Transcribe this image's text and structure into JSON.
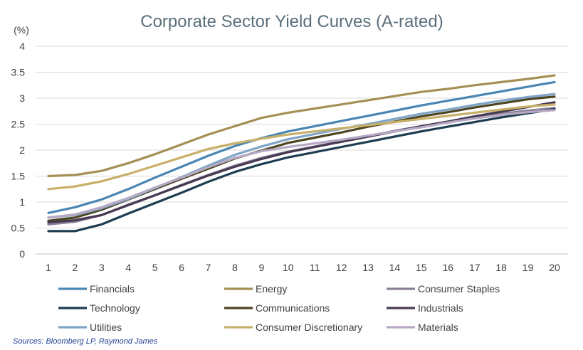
{
  "chart_data": {
    "type": "line",
    "title": "Corporate Sector Yield Curves (A-rated)",
    "ylabel": "(%)",
    "xlabel": "",
    "source": "Sources: Bloomberg LP, Raymond James",
    "x": [
      1,
      2,
      3,
      4,
      5,
      6,
      7,
      8,
      9,
      10,
      11,
      12,
      13,
      14,
      15,
      16,
      17,
      18,
      19,
      20
    ],
    "ylim": [
      0,
      4
    ],
    "yticks": [
      "0",
      "0.5",
      "1",
      "1.5",
      "2",
      "2.5",
      "3",
      "3.5",
      "4"
    ],
    "grid": "horizontal",
    "legend_placement": "bottom",
    "series": [
      {
        "name": "Financials",
        "color": "#4a86b4",
        "values": [
          0.79,
          0.9,
          1.05,
          1.25,
          1.47,
          1.68,
          1.89,
          2.08,
          2.23,
          2.36,
          2.46,
          2.56,
          2.66,
          2.76,
          2.86,
          2.95,
          3.04,
          3.13,
          3.22,
          3.31
        ]
      },
      {
        "name": "Energy",
        "color": "#a58f55",
        "values": [
          1.5,
          1.52,
          1.6,
          1.75,
          1.92,
          2.11,
          2.3,
          2.46,
          2.62,
          2.72,
          2.8,
          2.88,
          2.96,
          3.04,
          3.12,
          3.18,
          3.25,
          3.31,
          3.37,
          3.44
        ]
      },
      {
        "name": "Consumer Staples",
        "color": "#8a7f96",
        "values": [
          0.57,
          0.62,
          0.75,
          0.95,
          1.13,
          1.33,
          1.52,
          1.7,
          1.85,
          1.97,
          2.07,
          2.17,
          2.27,
          2.37,
          2.46,
          2.55,
          2.63,
          2.7,
          2.76,
          2.81
        ]
      },
      {
        "name": "Technology",
        "color": "#1e3d52",
        "values": [
          0.44,
          0.44,
          0.57,
          0.78,
          0.98,
          1.18,
          1.39,
          1.58,
          1.73,
          1.86,
          1.96,
          2.06,
          2.16,
          2.26,
          2.36,
          2.45,
          2.54,
          2.63,
          2.71,
          2.79
        ]
      },
      {
        "name": "Communications",
        "color": "#4d4520",
        "values": [
          0.64,
          0.7,
          0.85,
          1.05,
          1.25,
          1.45,
          1.64,
          1.84,
          1.99,
          2.14,
          2.24,
          2.34,
          2.45,
          2.55,
          2.65,
          2.73,
          2.82,
          2.9,
          2.98,
          3.03
        ]
      },
      {
        "name": "Industrials",
        "color": "#463a52",
        "values": [
          0.61,
          0.65,
          0.75,
          0.94,
          1.13,
          1.32,
          1.51,
          1.68,
          1.83,
          1.96,
          2.06,
          2.16,
          2.26,
          2.36,
          2.46,
          2.55,
          2.65,
          2.74,
          2.83,
          2.92
        ]
      },
      {
        "name": "Utilities",
        "color": "#7ea5c8",
        "values": [
          0.7,
          0.75,
          0.88,
          1.06,
          1.27,
          1.48,
          1.7,
          1.91,
          2.07,
          2.21,
          2.31,
          2.41,
          2.5,
          2.6,
          2.7,
          2.78,
          2.87,
          2.95,
          3.02,
          3.08
        ]
      },
      {
        "name": "Consumer Discretionary",
        "color": "#c8b06a",
        "values": [
          1.25,
          1.3,
          1.4,
          1.54,
          1.7,
          1.86,
          2.02,
          2.13,
          2.22,
          2.3,
          2.36,
          2.42,
          2.48,
          2.54,
          2.6,
          2.66,
          2.72,
          2.78,
          2.84,
          2.88
        ]
      },
      {
        "name": "Materials",
        "color": "#b6a9c4",
        "values": [
          0.7,
          0.76,
          0.9,
          1.08,
          1.28,
          1.47,
          1.67,
          1.85,
          1.98,
          2.06,
          2.13,
          2.2,
          2.28,
          2.36,
          2.44,
          2.53,
          2.61,
          2.68,
          2.73,
          2.77
        ]
      }
    ]
  }
}
